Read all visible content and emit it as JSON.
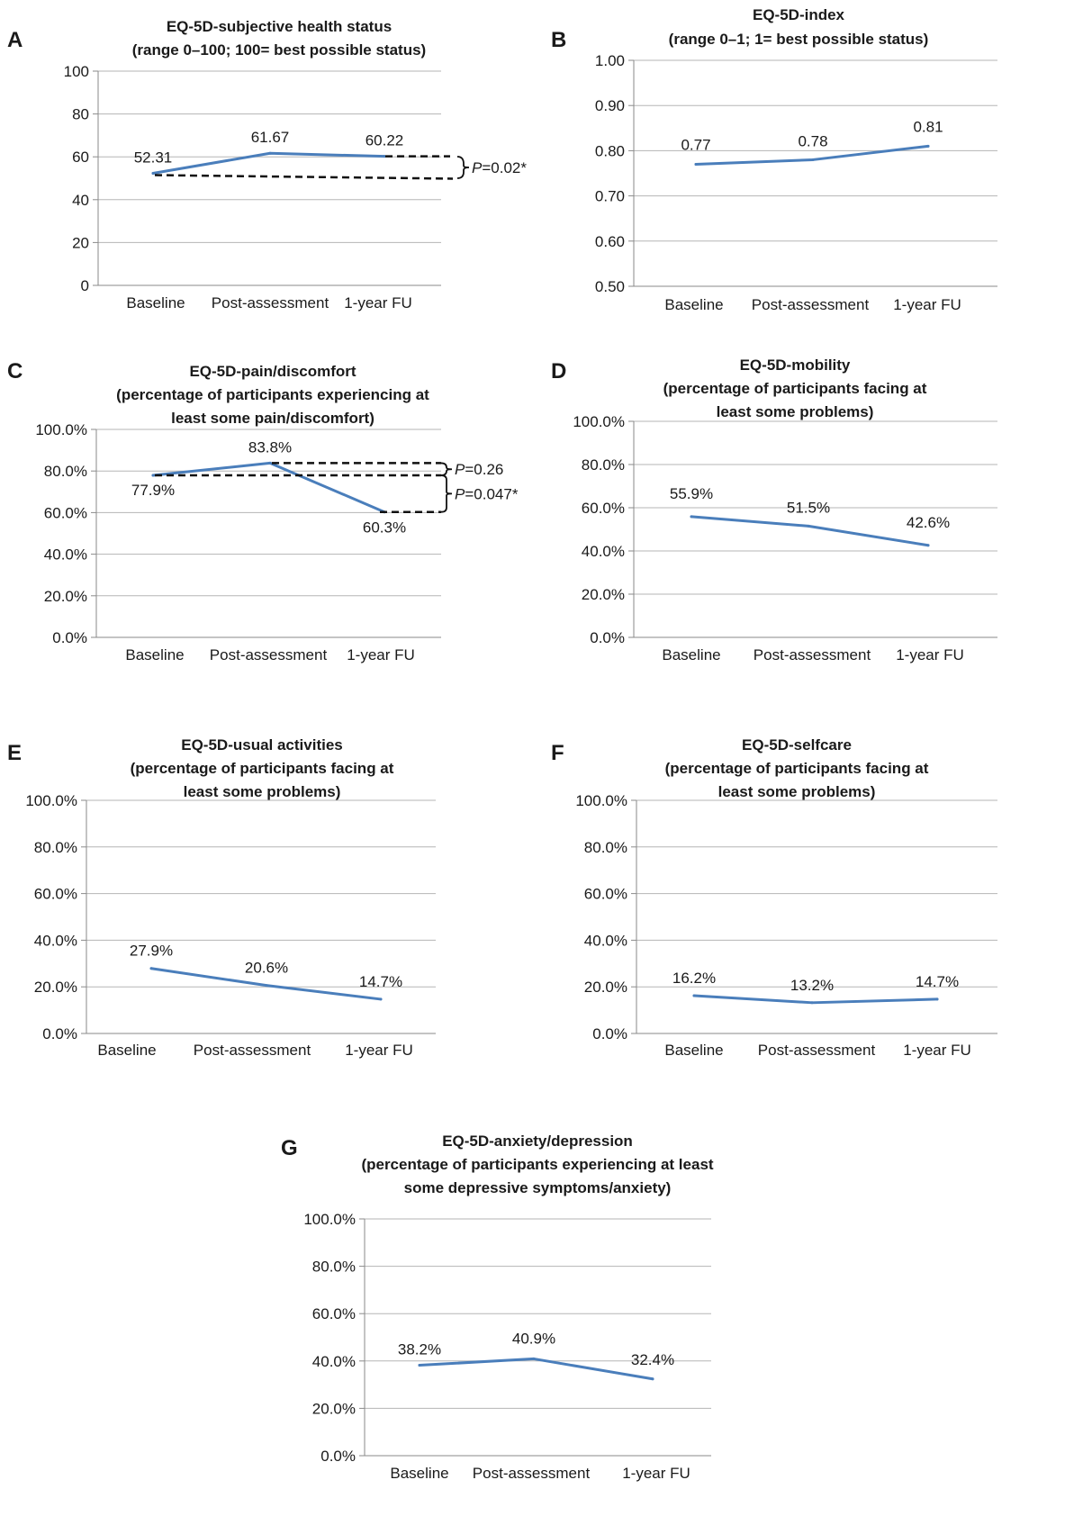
{
  "chart_data": [
    {
      "type": "line",
      "panel": "A",
      "title": [
        "EQ-5D-subjective health status",
        "(range 0–100; 100= best possible status)"
      ],
      "categories": [
        "Baseline",
        "Post-assessment",
        "1-year FU"
      ],
      "values": [
        52.31,
        61.67,
        60.22
      ],
      "data_labels": [
        "52.31",
        "61.67",
        "60.22"
      ],
      "ylim": [
        0,
        100
      ],
      "yticks": [
        0,
        20,
        40,
        60,
        80,
        100
      ],
      "ytick_labels": [
        "0",
        "20",
        "40",
        "60",
        "80",
        "100"
      ],
      "grid": true,
      "comparisons": [
        {
          "from": 0,
          "to": 2,
          "p_label": "P",
          "p_value": "=0.02*"
        }
      ]
    },
    {
      "type": "line",
      "panel": "B",
      "title": [
        "EQ-5D-index",
        "(range 0–1; 1= best possible status)"
      ],
      "categories": [
        "Baseline",
        "Post-assessment",
        "1-year FU"
      ],
      "values": [
        0.77,
        0.78,
        0.81
      ],
      "data_labels": [
        "0.77",
        "0.78",
        "0.81"
      ],
      "ylim": [
        0.5,
        1.0
      ],
      "yticks": [
        0.5,
        0.6,
        0.7,
        0.8,
        0.9,
        1.0
      ],
      "ytick_labels": [
        "0.50",
        "0.60",
        "0.70",
        "0.80",
        "0.90",
        "1.00"
      ],
      "grid": true
    },
    {
      "type": "line",
      "panel": "C",
      "title": [
        "EQ-5D-pain/discomfort",
        "(percentage of participants experiencing at",
        "least some pain/discomfort)"
      ],
      "categories": [
        "Baseline",
        "Post-assessment",
        "1-year FU"
      ],
      "values": [
        77.9,
        83.8,
        60.3
      ],
      "data_labels": [
        "77.9%",
        "83.8%",
        "60.3%"
      ],
      "ylim": [
        0,
        100
      ],
      "yticks": [
        0,
        20,
        40,
        60,
        80,
        100
      ],
      "ytick_labels": [
        "0.0%",
        "20.0%",
        "40.0%",
        "60.0%",
        "80.0%",
        "100.0%"
      ],
      "grid": true,
      "comparisons": [
        {
          "from": 1,
          "to": 2,
          "p_label": "P",
          "p_value": "=0.26"
        },
        {
          "from": 0,
          "to": 2,
          "p_label": "P",
          "p_value": "=0.047*"
        }
      ]
    },
    {
      "type": "line",
      "panel": "D",
      "title": [
        "EQ-5D-mobility",
        "(percentage of participants facing at",
        "least some problems)"
      ],
      "categories": [
        "Baseline",
        "Post-assessment",
        "1-year FU"
      ],
      "values": [
        55.9,
        51.5,
        42.6
      ],
      "data_labels": [
        "55.9%",
        "51.5%",
        "42.6%"
      ],
      "ylim": [
        0,
        100
      ],
      "yticks": [
        0,
        20,
        40,
        60,
        80,
        100
      ],
      "ytick_labels": [
        "0.0%",
        "20.0%",
        "40.0%",
        "60.0%",
        "80.0%",
        "100.0%"
      ],
      "grid": true
    },
    {
      "type": "line",
      "panel": "E",
      "title": [
        "EQ-5D-usual activities",
        "(percentage of participants facing at",
        "least some problems)"
      ],
      "categories": [
        "Baseline",
        "Post-assessment",
        "1-year FU"
      ],
      "values": [
        27.9,
        20.6,
        14.7
      ],
      "data_labels": [
        "27.9%",
        "20.6%",
        "14.7%"
      ],
      "ylim": [
        0,
        100
      ],
      "yticks": [
        0,
        20,
        40,
        60,
        80,
        100
      ],
      "ytick_labels": [
        "0.0%",
        "20.0%",
        "40.0%",
        "60.0%",
        "80.0%",
        "100.0%"
      ],
      "grid": true
    },
    {
      "type": "line",
      "panel": "F",
      "title": [
        "EQ-5D-selfcare",
        "(percentage of participants facing at",
        "least some problems)"
      ],
      "categories": [
        "Baseline",
        "Post-assessment",
        "1-year FU"
      ],
      "values": [
        16.2,
        13.2,
        14.7
      ],
      "data_labels": [
        "16.2%",
        "13.2%",
        "14.7%"
      ],
      "ylim": [
        0,
        100
      ],
      "yticks": [
        0,
        20,
        40,
        60,
        80,
        100
      ],
      "ytick_labels": [
        "0.0%",
        "20.0%",
        "40.0%",
        "60.0%",
        "80.0%",
        "100.0%"
      ],
      "grid": true
    },
    {
      "type": "line",
      "panel": "G",
      "title": [
        "EQ-5D-anxiety/depression",
        "(percentage of participants experiencing at least",
        "some depressive symptoms/anxiety)"
      ],
      "categories": [
        "Baseline",
        "Post-assessment",
        "1-year FU"
      ],
      "values": [
        38.2,
        40.9,
        32.4
      ],
      "data_labels": [
        "38.2%",
        "40.9%",
        "32.4%"
      ],
      "ylim": [
        0,
        100
      ],
      "yticks": [
        0,
        20,
        40,
        60,
        80,
        100
      ],
      "ytick_labels": [
        "0.0%",
        "20.0%",
        "40.0%",
        "60.0%",
        "80.0%",
        "100.0%"
      ],
      "grid": true
    }
  ],
  "colors": {
    "series": "#4a7ebb",
    "grid": "#b5b5b5",
    "dashed_annotation": "#111111"
  }
}
